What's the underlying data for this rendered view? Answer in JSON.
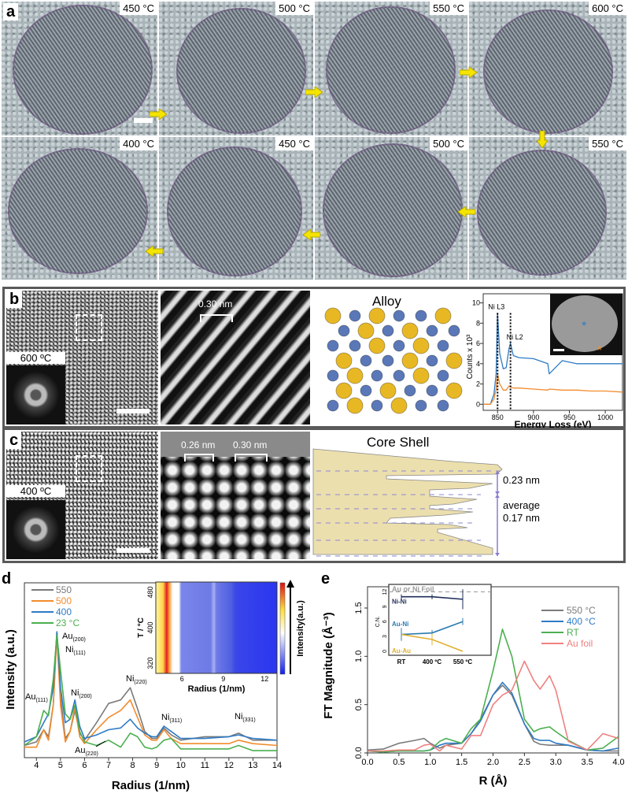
{
  "panel_labels": {
    "a": "a",
    "b": "b",
    "c": "c",
    "d": "d",
    "e": "e"
  },
  "panel_a": {
    "row1": [
      "450 °C",
      "500 °C",
      "550 °C",
      "600 °C"
    ],
    "row2": [
      "400 °C",
      "450 °C",
      "500 °C",
      "550 °C"
    ],
    "arrow_color": "#f5e400"
  },
  "panel_b": {
    "fft_label": "600 ºC",
    "spacing": "0.30 nm",
    "model_title": "Alloy",
    "colors": {
      "ni": "#5a78b8",
      "au": "#e8b824"
    }
  },
  "panel_c": {
    "fft_label": "400 ºC",
    "spacing1": "0.26 nm",
    "spacing2": "0.30 nm",
    "model_title": "Core Shell",
    "dist1": "0.23 nm",
    "avg_label": "average",
    "dist2": "0.17 nm"
  },
  "chart_data": [
    {
      "id": "eels",
      "type": "line",
      "xlabel": "Energy Loss (eV)",
      "ylabel": "Counts x 10³",
      "xlim": [
        830,
        1024
      ],
      "ylim": [
        -0.6,
        10.9
      ],
      "xticks": [
        850,
        900,
        950,
        1000
      ],
      "yticks": [
        0,
        2,
        4,
        6,
        8,
        10
      ],
      "annotations": [
        "Ni L3",
        "Ni L2"
      ],
      "markers": [
        850,
        868
      ],
      "x": [
        830,
        840,
        845,
        848,
        850,
        853,
        858,
        862,
        866,
        868,
        872,
        880,
        900,
        920,
        922,
        940,
        960,
        980,
        1000,
        1024
      ],
      "series": [
        {
          "name": "blue spot",
          "color": "#2f7bc4",
          "values": [
            0,
            0,
            1,
            3,
            9,
            5,
            3.5,
            3.6,
            5.5,
            6,
            4.8,
            4.6,
            4.5,
            4.0,
            3,
            4.3,
            4.0,
            4.0,
            4.0,
            4.0
          ]
        },
        {
          "name": "orange spot",
          "color": "#f28c2e",
          "values": [
            0,
            0,
            0.5,
            1.5,
            3,
            2,
            1.4,
            1.4,
            1.8,
            1.7,
            1.6,
            1.6,
            1.5,
            1.4,
            1.5,
            1.4,
            1.4,
            1.3,
            1.3,
            1.2
          ]
        }
      ]
    },
    {
      "id": "d",
      "type": "line",
      "xlabel": "Radius (1/nm)",
      "ylabel": "Intensity (a.u.)",
      "xlim": [
        3.5,
        14
      ],
      "ylim": [
        0,
        100
      ],
      "xticks": [
        4,
        5,
        6,
        7,
        8,
        9,
        10,
        11,
        12,
        13,
        14
      ],
      "legend": "top-left",
      "peak_labels": [
        {
          "base": "Au",
          "sub": "(200)",
          "x": 4.85
        },
        {
          "base": "Ni",
          "sub": "(111)",
          "x": 4.85
        },
        {
          "base": "Au",
          "sub": "(111)",
          "x": 4.3
        },
        {
          "base": "Ni",
          "sub": "(200)",
          "x": 5.6
        },
        {
          "base": "Ni",
          "sub": "(220)",
          "x": 7.9
        },
        {
          "base": "Ni",
          "sub": "(311)",
          "x": 9.3
        },
        {
          "base": "Ni",
          "sub": "(331)",
          "x": 12.4
        },
        {
          "base": "Au",
          "sub": "(220)",
          "x": 6.9
        }
      ],
      "x": [
        3.5,
        4.0,
        4.3,
        4.5,
        4.7,
        4.85,
        5.0,
        5.2,
        5.4,
        5.6,
        5.8,
        6.0,
        6.5,
        7.0,
        7.5,
        7.9,
        8.2,
        8.5,
        8.8,
        9.0,
        9.3,
        9.6,
        10,
        11,
        12,
        12.4,
        13,
        14
      ],
      "series": [
        {
          "name": "550",
          "color": "#7a7a7a",
          "values": [
            7,
            9,
            16,
            12,
            30,
            72,
            35,
            11,
            15,
            27,
            14,
            10,
            20,
            31,
            33,
            40,
            28,
            15,
            11,
            11,
            17,
            13,
            10,
            12,
            12,
            14,
            10,
            10
          ]
        },
        {
          "name": "500",
          "color": "#f28c2e",
          "values": [
            6,
            6,
            16,
            10,
            30,
            70,
            30,
            9,
            15,
            29,
            12,
            8,
            16,
            23,
            27,
            33,
            23,
            13,
            10,
            10,
            16,
            11,
            8,
            8,
            8,
            10,
            8,
            7
          ]
        },
        {
          "name": "400",
          "color": "#2f7bc4",
          "values": [
            9,
            12,
            20,
            25,
            40,
            72,
            40,
            20,
            22,
            33,
            18,
            11,
            13,
            16,
            17,
            22,
            17,
            14,
            12,
            12,
            18,
            15,
            11,
            11,
            12,
            13,
            11,
            10
          ]
        },
        {
          "name": "23 °C",
          "color": "#4caf50",
          "values": [
            7,
            12,
            27,
            24,
            45,
            70,
            50,
            25,
            22,
            30,
            15,
            9,
            7,
            10,
            6,
            14,
            12,
            6,
            5,
            6,
            10,
            11,
            5,
            5,
            5,
            7,
            4,
            4
          ]
        }
      ]
    },
    {
      "id": "d_inset",
      "type": "heatmap",
      "xlabel": "Radius (1/nm)",
      "ylabel": "T / °C",
      "xlim": [
        4.1,
        12.9
      ],
      "ylim": [
        297,
        503
      ],
      "xticks": [
        6,
        9,
        12
      ],
      "yticks": [
        320,
        400,
        480
      ],
      "colorbar_label": "Intensity(a.u.)"
    },
    {
      "id": "e",
      "type": "line",
      "xlabel": "R (Å)",
      "ylabel": "FT Magnitude (Å⁻³)",
      "xlim": [
        0,
        4
      ],
      "ylim": [
        0,
        1.72
      ],
      "xticks": [
        0.0,
        0.5,
        1.0,
        1.5,
        2.0,
        2.5,
        3.0,
        3.5,
        4.0
      ],
      "yticks": [
        0.0,
        0.5,
        1.0,
        1.5
      ],
      "legend": "top-right",
      "x": [
        0,
        0.25,
        0.5,
        0.75,
        0.9,
        1.0,
        1.15,
        1.25,
        1.5,
        1.65,
        1.8,
        2.0,
        2.15,
        2.3,
        2.5,
        2.65,
        2.75,
        2.9,
        3.0,
        3.2,
        3.5,
        3.75,
        4.0
      ],
      "series": [
        {
          "name": "550 °C",
          "color": "#7a7a7a",
          "values": [
            0.03,
            0.04,
            0.1,
            0.13,
            0.15,
            0.1,
            0.05,
            0.08,
            0.1,
            0.2,
            0.35,
            0.6,
            0.7,
            0.6,
            0.3,
            0.12,
            0.09,
            0.08,
            0.08,
            0.08,
            0.03,
            0.02,
            0.02
          ]
        },
        {
          "name": "400 °C",
          "color": "#2f7bc4",
          "values": [
            0.02,
            0.01,
            0.02,
            0.02,
            0.02,
            0.03,
            0.08,
            0.1,
            0.1,
            0.2,
            0.33,
            0.6,
            0.73,
            0.62,
            0.3,
            0.15,
            0.13,
            0.13,
            0.1,
            0.08,
            0.03,
            0.02,
            0.05
          ]
        },
        {
          "name": "RT",
          "color": "#4caf50",
          "values": [
            0.02,
            0.01,
            0.02,
            0.02,
            0.02,
            0.03,
            0.12,
            0.15,
            0.1,
            0.25,
            0.35,
            0.85,
            1.28,
            1.0,
            0.35,
            0.22,
            0.25,
            0.27,
            0.22,
            0.13,
            0.03,
            0.05,
            0.17
          ]
        },
        {
          "name": "Au foil",
          "color": "#f08080",
          "values": [
            0.02,
            0.02,
            0.03,
            0.03,
            0.08,
            0.09,
            0.02,
            0.08,
            0.04,
            0.18,
            0.18,
            0.5,
            0.6,
            0.65,
            0.95,
            0.75,
            0.66,
            0.8,
            0.65,
            0.12,
            0.03,
            0.2,
            0.15
          ]
        }
      ]
    },
    {
      "id": "e_inset",
      "type": "line",
      "ylabel": "C.N.",
      "categories": [
        "RT",
        "400 ºC",
        "550 ºC"
      ],
      "ylim": [
        -0.8,
        13.5
      ],
      "yticks": [
        0,
        3,
        6,
        9,
        12
      ],
      "reference": {
        "name": "Au or Ni Foil",
        "value": 12,
        "color": "#999999"
      },
      "series": [
        {
          "name": "Ni-Ni",
          "color": "#1f2e5a",
          "values": [
            11,
            11,
            10.5
          ],
          "errors": [
            0.5,
            0.5,
            2
          ]
        },
        {
          "name": "Au-Ni",
          "color": "#2a7bb0",
          "values": [
            3.4,
            3.7,
            6
          ],
          "errors": [
            1.3,
            0.6,
            0.7
          ]
        },
        {
          "name": "Au-Au",
          "color": "#e0b030",
          "values": [
            3.4,
            2.4,
            0
          ],
          "errors": [
            0,
            1.2,
            0
          ]
        }
      ]
    }
  ]
}
